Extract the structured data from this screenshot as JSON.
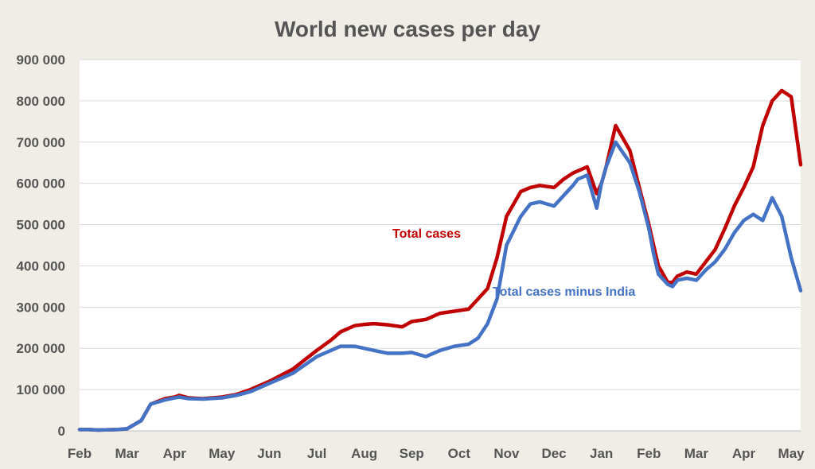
{
  "chart_data": {
    "type": "line",
    "title": "World new cases per day",
    "xlabel": "",
    "ylabel": "",
    "ylim": [
      0,
      900000
    ],
    "y_ticks": [
      0,
      100000,
      200000,
      300000,
      400000,
      500000,
      600000,
      700000,
      800000,
      900000
    ],
    "y_tick_labels": [
      "0",
      "100 000",
      "200 000",
      "300 000",
      "400 000",
      "500 000",
      "600 000",
      "700 000",
      "800 000",
      "900 000"
    ],
    "x_unit": "months since start of Feb 2020",
    "xlim": [
      0,
      15.2
    ],
    "x_ticks": [
      0,
      1,
      2,
      3,
      4,
      5,
      6,
      7,
      8,
      9,
      10,
      11,
      12,
      13,
      14,
      15
    ],
    "x_tick_labels": [
      "Feb",
      "Mar",
      "Apr",
      "May",
      "Jun",
      "Jul",
      "Aug",
      "Sep",
      "Oct",
      "Nov",
      "Dec",
      "Jan",
      "Feb",
      "Mar",
      "Apr",
      "May"
    ],
    "grid": true,
    "legend": "inline labels",
    "series": [
      {
        "name": "Total cases",
        "color": "#c00000",
        "x": [
          0,
          0.2,
          0.4,
          0.8,
          1.0,
          1.3,
          1.5,
          1.8,
          2.0,
          2.1,
          2.3,
          2.6,
          3.0,
          3.3,
          3.6,
          4.0,
          4.5,
          5.0,
          5.3,
          5.5,
          5.8,
          6.0,
          6.2,
          6.5,
          6.8,
          7.0,
          7.3,
          7.6,
          7.9,
          8.2,
          8.4,
          8.6,
          8.8,
          9.0,
          9.3,
          9.5,
          9.7,
          10.0,
          10.2,
          10.4,
          10.5,
          10.7,
          10.9,
          11.0,
          11.1,
          11.3,
          11.6,
          11.8,
          12.0,
          12.1,
          12.2,
          12.4,
          12.5,
          12.6,
          12.8,
          13.0,
          13.2,
          13.4,
          13.6,
          13.8,
          14.0,
          14.2,
          14.4,
          14.6,
          14.8,
          15.0,
          15.2
        ],
        "y": [
          3000,
          3000,
          2000,
          3000,
          5000,
          25000,
          65000,
          78000,
          82000,
          86000,
          80000,
          78000,
          82000,
          88000,
          100000,
          120000,
          150000,
          195000,
          220000,
          240000,
          255000,
          258000,
          260000,
          257000,
          252000,
          265000,
          270000,
          285000,
          290000,
          295000,
          320000,
          345000,
          420000,
          520000,
          580000,
          590000,
          595000,
          590000,
          610000,
          625000,
          630000,
          640000,
          575000,
          600000,
          640000,
          740000,
          680000,
          590000,
          500000,
          450000,
          400000,
          360000,
          360000,
          375000,
          385000,
          380000,
          410000,
          440000,
          490000,
          545000,
          590000,
          640000,
          740000,
          800000,
          825000,
          810000,
          645000
        ]
      },
      {
        "name": "Total cases minus India",
        "color": "#4472c4",
        "x": [
          0,
          0.2,
          0.4,
          0.8,
          1.0,
          1.3,
          1.5,
          1.8,
          2.0,
          2.1,
          2.3,
          2.6,
          3.0,
          3.3,
          3.6,
          4.0,
          4.5,
          5.0,
          5.3,
          5.5,
          5.8,
          6.0,
          6.2,
          6.5,
          6.8,
          7.0,
          7.3,
          7.6,
          7.9,
          8.2,
          8.4,
          8.6,
          8.8,
          9.0,
          9.3,
          9.5,
          9.7,
          10.0,
          10.2,
          10.4,
          10.5,
          10.7,
          10.9,
          11.0,
          11.1,
          11.3,
          11.6,
          11.8,
          12.0,
          12.1,
          12.2,
          12.4,
          12.5,
          12.6,
          12.8,
          13.0,
          13.2,
          13.4,
          13.6,
          13.8,
          14.0,
          14.2,
          14.4,
          14.6,
          14.8,
          15.0,
          15.2
        ],
        "y": [
          3000,
          3000,
          2000,
          3000,
          5000,
          25000,
          65000,
          75000,
          80000,
          82000,
          78000,
          77000,
          80000,
          86000,
          95000,
          115000,
          140000,
          180000,
          195000,
          205000,
          205000,
          200000,
          195000,
          188000,
          188000,
          190000,
          180000,
          195000,
          205000,
          210000,
          225000,
          260000,
          320000,
          450000,
          520000,
          550000,
          555000,
          545000,
          570000,
          595000,
          610000,
          620000,
          540000,
          600000,
          640000,
          700000,
          650000,
          580000,
          490000,
          430000,
          380000,
          355000,
          350000,
          365000,
          370000,
          365000,
          390000,
          410000,
          440000,
          480000,
          510000,
          525000,
          510000,
          565000,
          520000,
          420000,
          340000
        ]
      }
    ],
    "annotations": [
      {
        "text": "Total cases",
        "color": "#c00000"
      },
      {
        "text": "Total cases minus India",
        "color": "#4472c4"
      }
    ]
  }
}
